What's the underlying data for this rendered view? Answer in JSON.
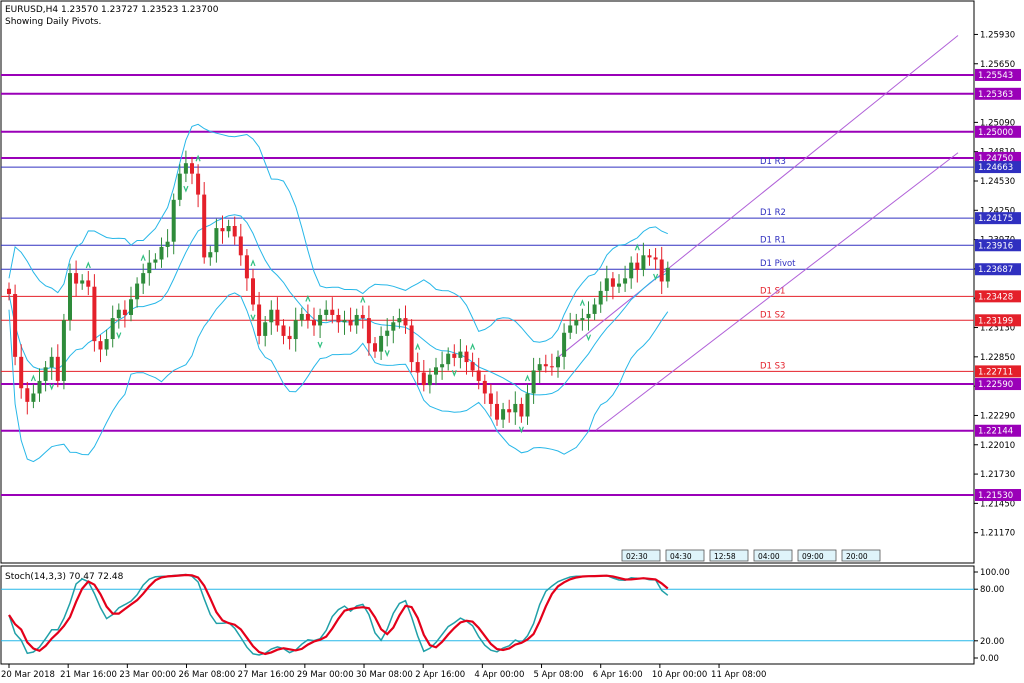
{
  "header": {
    "symbol_line": "EURUSD,H4  1.23570 1.23727 1.23523 1.23700",
    "subtitle": "Showing Daily Pivots."
  },
  "colors": {
    "bull": "#2e8b3a",
    "bear": "#e4202a",
    "bollinger": "#27b7e8",
    "channel": "#b060d8",
    "sr_line": "#9a00b8",
    "pivot_line": "#3030c0",
    "support_line": "#e4202a",
    "stoch_main": "#20a0a8",
    "stoch_signal": "#e4001a",
    "fractal": "#30c080"
  },
  "chart_data": {
    "type": "candlestick",
    "symbol": "EURUSD",
    "timeframe": "H4",
    "y_axis": {
      "range": [
        1.2089,
        1.2624
      ],
      "ticks": [
        1.2593,
        1.2565,
        1.2509,
        1.2481,
        1.2453,
        1.2425,
        1.2397,
        1.2369,
        1.2341,
        1.2313,
        1.2285,
        1.2257,
        1.2229,
        1.2201,
        1.2173,
        1.2145,
        1.2117
      ]
    },
    "x_axis": {
      "labels": [
        "20 Mar 2018",
        "21 Mar 16:00",
        "23 Mar 00:00",
        "26 Mar 08:00",
        "27 Mar 16:00",
        "29 Mar 00:00",
        "30 Mar 08:00",
        "2 Apr 16:00",
        "4 Apr 00:00",
        "5 Apr 08:00",
        "6 Apr 16:00",
        "10 Apr 00:00",
        "11 Apr 08:00"
      ],
      "label_bars": [
        0,
        10,
        20,
        30,
        40,
        50,
        60,
        70,
        80,
        90,
        100,
        110,
        120
      ]
    },
    "horizontal_levels": [
      {
        "label": "1.25543",
        "value": 1.25543,
        "kind": "sr"
      },
      {
        "label": "1.25363",
        "value": 1.25363,
        "kind": "sr"
      },
      {
        "label": "1.25000",
        "value": 1.25,
        "kind": "sr"
      },
      {
        "label": "1.24750",
        "value": 1.2475,
        "kind": "sr"
      },
      {
        "label": "1.24663",
        "value": 1.24663,
        "kind": "pivot",
        "name": "D1 R3"
      },
      {
        "label": "1.24175",
        "value": 1.24175,
        "kind": "pivot",
        "name": "D1 R2"
      },
      {
        "label": "1.23916",
        "value": 1.23916,
        "kind": "pivot",
        "name": "D1 R1"
      },
      {
        "label": "1.23687",
        "value": 1.23687,
        "kind": "pivot",
        "name": "D1 Pivot"
      },
      {
        "label": "1.23428",
        "value": 1.23428,
        "kind": "support",
        "name": "D1 S1"
      },
      {
        "label": "1.23199",
        "value": 1.23199,
        "kind": "support",
        "name": "D1 S2"
      },
      {
        "label": "1.22711",
        "value": 1.22711,
        "kind": "support",
        "name": "D1 S3"
      },
      {
        "label": "1.22590",
        "value": 1.2259,
        "kind": "sr"
      },
      {
        "label": "1.22144",
        "value": 1.22144,
        "kind": "sr"
      },
      {
        "label": "1.21530",
        "value": 1.2153,
        "kind": "sr"
      }
    ],
    "candles_close": [
      1.2345,
      1.2285,
      1.2255,
      1.2242,
      1.225,
      1.2262,
      1.2275,
      1.2285,
      1.2262,
      1.232,
      1.2365,
      1.2355,
      1.2358,
      1.2352,
      1.23,
      1.2292,
      1.2302,
      1.2322,
      1.233,
      1.2325,
      1.234,
      1.2355,
      1.2365,
      1.2375,
      1.2378,
      1.239,
      1.2395,
      1.2435,
      1.246,
      1.247,
      1.246,
      1.244,
      1.238,
      1.2385,
      1.2408,
      1.2405,
      1.241,
      1.24,
      1.2382,
      1.236,
      1.2335,
      1.2305,
      1.2318,
      1.233,
      1.2315,
      1.2305,
      1.2302,
      1.232,
      1.2326,
      1.232,
      1.2315,
      1.2325,
      1.233,
      1.2325,
      1.2318,
      1.232,
      1.2315,
      1.2325,
      1.2322,
      1.2298,
      1.229,
      1.2305,
      1.231,
      1.2318,
      1.2322,
      1.2315,
      1.228,
      1.227,
      1.2258,
      1.2268,
      1.2275,
      1.2278,
      1.2288,
      1.2284,
      1.229,
      1.228,
      1.2272,
      1.2262,
      1.225,
      1.224,
      1.2225,
      1.2235,
      1.2232,
      1.224,
      1.2228,
      1.225,
      1.2272,
      1.2278,
      1.2276,
      1.2275,
      1.2285,
      1.2308,
      1.2315,
      1.232,
      1.2322,
      1.2326,
      1.2335,
      1.2348,
      1.236,
      1.2352,
      1.2355,
      1.236,
      1.2375,
      1.2368,
      1.2382,
      1.238,
      1.2378,
      1.2357,
      1.237
    ],
    "candles_open": [
      1.235,
      1.2345,
      1.2285,
      1.2255,
      1.2242,
      1.225,
      1.2262,
      1.2275,
      1.2285,
      1.2262,
      1.232,
      1.2365,
      1.2355,
      1.2358,
      1.2352,
      1.23,
      1.2292,
      1.2302,
      1.2322,
      1.233,
      1.2325,
      1.234,
      1.2355,
      1.2365,
      1.2375,
      1.2378,
      1.239,
      1.2395,
      1.2435,
      1.246,
      1.247,
      1.246,
      1.244,
      1.238,
      1.2385,
      1.2408,
      1.2405,
      1.241,
      1.24,
      1.2382,
      1.236,
      1.2335,
      1.2305,
      1.2318,
      1.233,
      1.2315,
      1.2305,
      1.2302,
      1.232,
      1.2326,
      1.232,
      1.2315,
      1.2325,
      1.233,
      1.2325,
      1.2318,
      1.232,
      1.2315,
      1.2325,
      1.2322,
      1.2298,
      1.229,
      1.2305,
      1.231,
      1.2318,
      1.2322,
      1.2315,
      1.228,
      1.227,
      1.2258,
      1.2268,
      1.2275,
      1.2278,
      1.2288,
      1.2284,
      1.229,
      1.228,
      1.2272,
      1.2262,
      1.225,
      1.224,
      1.2225,
      1.2235,
      1.2232,
      1.224,
      1.2228,
      1.225,
      1.2272,
      1.2278,
      1.2276,
      1.2275,
      1.2285,
      1.2308,
      1.2315,
      1.232,
      1.2322,
      1.2326,
      1.2335,
      1.2348,
      1.236,
      1.2352,
      1.2355,
      1.236,
      1.2375,
      1.2368,
      1.2382,
      1.238,
      1.2378,
      1.2357
    ]
  },
  "timer_boxes": [
    "02:30",
    "04:30",
    "12:58",
    "04:00",
    "09:00",
    "20:00"
  ],
  "stochastic": {
    "label": "Stoch(14,3,3) 70.47 72.48",
    "ticks": [
      "100.00",
      "80.00",
      "20.00",
      "0.00"
    ],
    "levels": [
      100,
      80,
      20,
      0
    ],
    "main_last": 70.47,
    "signal_last": 72.48
  }
}
